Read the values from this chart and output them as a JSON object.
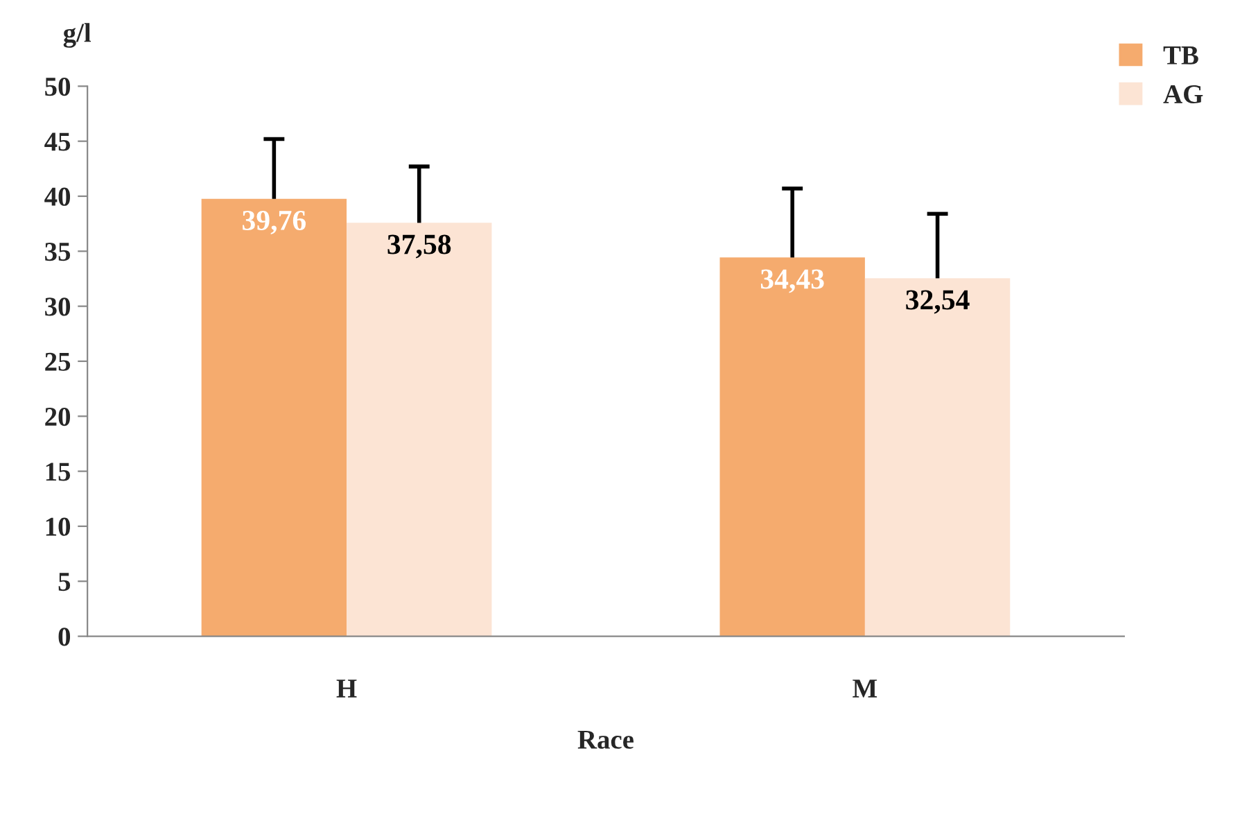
{
  "chart_data": {
    "type": "bar",
    "ylabel": "g/l",
    "xlabel": "Race",
    "categories": [
      "H",
      "M"
    ],
    "series": [
      {
        "name": "TB",
        "color": "#f5ab6e",
        "values": [
          39.76,
          34.43
        ],
        "value_labels": [
          "39,76",
          "34,43"
        ],
        "errors": [
          [
            39.76,
            45.2
          ],
          [
            34.43,
            40.7
          ]
        ]
      },
      {
        "name": "AG",
        "color": "#fce4d4",
        "values": [
          37.58,
          32.54
        ],
        "value_labels": [
          "37,58",
          "32,54"
        ],
        "errors": [
          [
            37.58,
            42.7
          ],
          [
            32.54,
            38.4
          ]
        ]
      }
    ],
    "ylim": [
      0,
      50
    ],
    "yticks": [
      0,
      5,
      10,
      15,
      20,
      25,
      30,
      35,
      40,
      45,
      50
    ],
    "grid": false,
    "legend": "top right"
  }
}
